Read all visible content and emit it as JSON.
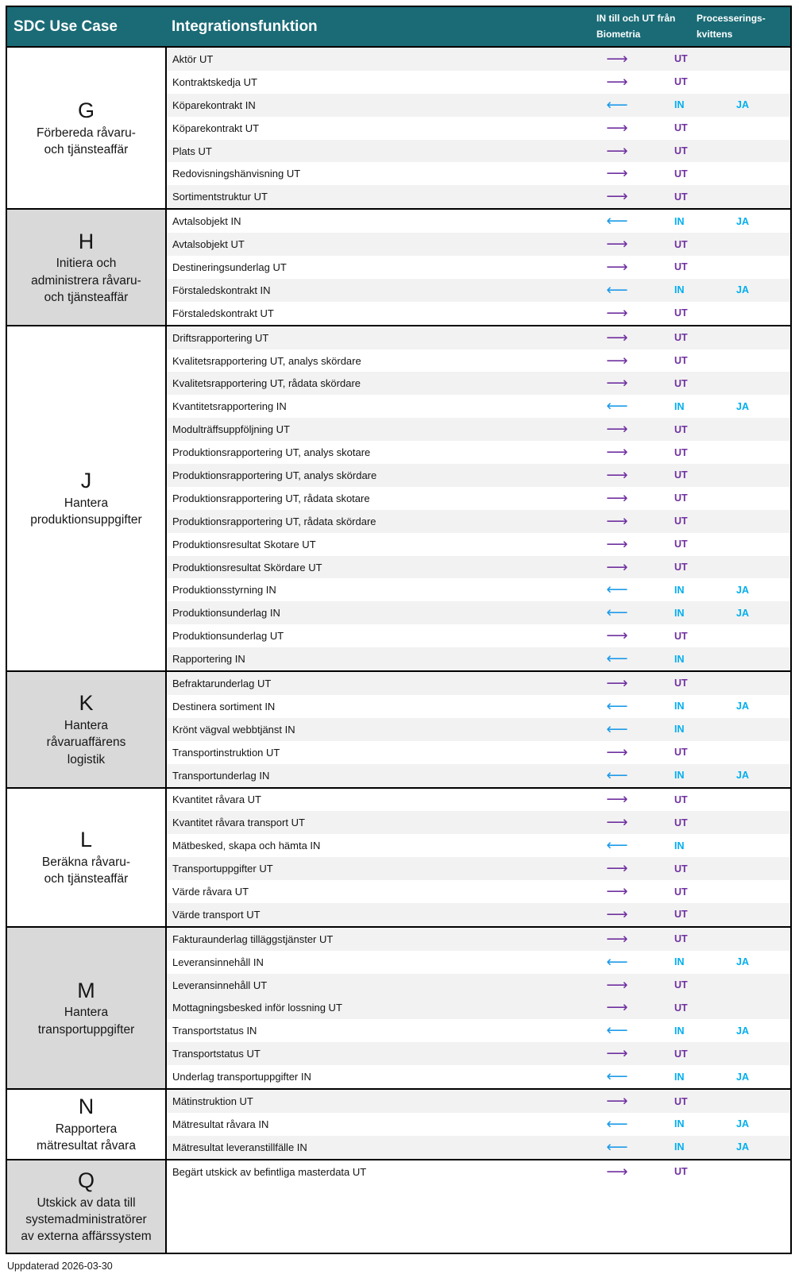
{
  "header": {
    "usecase": "SDC Use Case",
    "function": "Integrationsfunktion",
    "direction_line1": "IN till och UT från",
    "direction_line2": "Biometria",
    "receipt_line1": "Processerings-",
    "receipt_line2": "kvittens"
  },
  "colors": {
    "teal": "#1a6b76",
    "purple": "#7030a0",
    "blue_text": "#00aeef",
    "blue_arrow": "#1e9be9",
    "stripe": "#f2f2f2",
    "group_gray": "#d9d9d9"
  },
  "icons": {
    "out_arrow": "right-arrow-icon",
    "in_arrow": "left-arrow-icon"
  },
  "groups": [
    {
      "letter": "G",
      "title_lines": [
        "Förbereda råvaru-",
        "och tjänsteaffär"
      ],
      "shaded": false,
      "rows": [
        {
          "name": "Aktör UT",
          "dir": "UT",
          "receipt": "",
          "alt": true
        },
        {
          "name": "Kontraktskedja UT",
          "dir": "UT",
          "receipt": "",
          "alt": false
        },
        {
          "name": "Köparekontrakt IN",
          "dir": "IN",
          "receipt": "JA",
          "alt": true
        },
        {
          "name": "Köparekontrakt UT",
          "dir": "UT",
          "receipt": "",
          "alt": false
        },
        {
          "name": "Plats UT",
          "dir": "UT",
          "receipt": "",
          "alt": true
        },
        {
          "name": "Redovisningshänvisning UT",
          "dir": "UT",
          "receipt": "",
          "alt": false
        },
        {
          "name": "Sortimentstruktur UT",
          "dir": "UT",
          "receipt": "",
          "alt": true
        }
      ]
    },
    {
      "letter": "H",
      "title_lines": [
        "Initiera och",
        "administrera råvaru-",
        "och tjänsteaffär"
      ],
      "shaded": true,
      "rows": [
        {
          "name": "Avtalsobjekt IN",
          "dir": "IN",
          "receipt": "JA",
          "alt": false
        },
        {
          "name": "Avtalsobjekt UT",
          "dir": "UT",
          "receipt": "",
          "alt": true
        },
        {
          "name": "Destineringsunderlag UT",
          "dir": "UT",
          "receipt": "",
          "alt": false
        },
        {
          "name": "Förstaledskontrakt IN",
          "dir": "IN",
          "receipt": "JA",
          "alt": true
        },
        {
          "name": "Förstaledskontrakt UT",
          "dir": "UT",
          "receipt": "",
          "alt": false
        }
      ]
    },
    {
      "letter": "J",
      "title_lines": [
        "Hantera",
        "produktionsuppgifter"
      ],
      "shaded": false,
      "rows": [
        {
          "name": "Driftsrapportering UT",
          "dir": "UT",
          "receipt": "",
          "alt": true
        },
        {
          "name": "Kvalitetsrapportering UT, analys skördare",
          "dir": "UT",
          "receipt": "",
          "alt": false
        },
        {
          "name": "Kvalitetsrapportering UT, rådata skördare",
          "dir": "UT",
          "receipt": "",
          "alt": true
        },
        {
          "name": "Kvantitetsrapportering IN",
          "dir": "IN",
          "receipt": "JA",
          "alt": false
        },
        {
          "name": "Modulträffsuppföljning UT",
          "dir": "UT",
          "receipt": "",
          "alt": true
        },
        {
          "name": "Produktionsrapportering UT, analys skotare",
          "dir": "UT",
          "receipt": "",
          "alt": false
        },
        {
          "name": "Produktionsrapportering UT, analys skördare",
          "dir": "UT",
          "receipt": "",
          "alt": true
        },
        {
          "name": "Produktionsrapportering UT, rådata skotare",
          "dir": "UT",
          "receipt": "",
          "alt": false
        },
        {
          "name": "Produktionsrapportering UT, rådata skördare",
          "dir": "UT",
          "receipt": "",
          "alt": true
        },
        {
          "name": "Produktionsresultat Skotare UT",
          "dir": "UT",
          "receipt": "",
          "alt": false
        },
        {
          "name": "Produktionsresultat Skördare UT",
          "dir": "UT",
          "receipt": "",
          "alt": true
        },
        {
          "name": "Produktionsstyrning IN",
          "dir": "IN",
          "receipt": "JA",
          "alt": false
        },
        {
          "name": "Produktionsunderlag IN",
          "dir": "IN",
          "receipt": "JA",
          "alt": true
        },
        {
          "name": "Produktionsunderlag UT",
          "dir": "UT",
          "receipt": "",
          "alt": false
        },
        {
          "name": "Rapportering IN",
          "dir": "IN",
          "receipt": "",
          "alt": true
        }
      ]
    },
    {
      "letter": "K",
      "title_lines": [
        "Hantera",
        "råvaruaffärens",
        "logistik"
      ],
      "shaded": true,
      "rows": [
        {
          "name": "Befraktarunderlag UT",
          "dir": "UT",
          "receipt": "",
          "alt": true
        },
        {
          "name": "Destinera sortiment IN",
          "dir": "IN",
          "receipt": "JA",
          "alt": false
        },
        {
          "name": "Krönt vägval webbtjänst IN",
          "dir": "IN",
          "receipt": "",
          "alt": true
        },
        {
          "name": "Transportinstruktion UT",
          "dir": "UT",
          "receipt": "",
          "alt": false
        },
        {
          "name": "Transportunderlag IN",
          "dir": "IN",
          "receipt": "JA",
          "alt": true
        }
      ]
    },
    {
      "letter": "L",
      "title_lines": [
        "Beräkna råvaru-",
        "och tjänsteaffär"
      ],
      "shaded": false,
      "rows": [
        {
          "name": "Kvantitet råvara UT",
          "dir": "UT",
          "receipt": "",
          "alt": false
        },
        {
          "name": "Kvantitet råvara transport UT",
          "dir": "UT",
          "receipt": "",
          "alt": true
        },
        {
          "name": "Mätbesked, skapa och hämta IN",
          "dir": "IN",
          "receipt": "",
          "alt": false
        },
        {
          "name": "Transportuppgifter UT",
          "dir": "UT",
          "receipt": "",
          "alt": true
        },
        {
          "name": "Värde råvara UT",
          "dir": "UT",
          "receipt": "",
          "alt": false
        },
        {
          "name": "Värde transport UT",
          "dir": "UT",
          "receipt": "",
          "alt": true
        }
      ]
    },
    {
      "letter": "M",
      "title_lines": [
        "Hantera",
        "transportuppgifter"
      ],
      "shaded": true,
      "rows": [
        {
          "name": "Fakturaunderlag tilläggstjänster UT",
          "dir": "UT",
          "receipt": "",
          "alt": true
        },
        {
          "name": "Leveransinnehåll IN",
          "dir": "IN",
          "receipt": "JA",
          "alt": false
        },
        {
          "name": "Leveransinnehåll UT",
          "dir": "UT",
          "receipt": "",
          "alt": true
        },
        {
          "name": "Mottagningsbesked inför lossning UT",
          "dir": "UT",
          "receipt": "",
          "alt": true
        },
        {
          "name": "Transportstatus IN",
          "dir": "IN",
          "receipt": "JA",
          "alt": false
        },
        {
          "name": "Transportstatus UT",
          "dir": "UT",
          "receipt": "",
          "alt": true
        },
        {
          "name": "Underlag transportuppgifter IN",
          "dir": "IN",
          "receipt": "JA",
          "alt": false
        }
      ]
    },
    {
      "letter": "N",
      "title_lines": [
        "Rapportera",
        "mätresultat råvara"
      ],
      "shaded": false,
      "rows": [
        {
          "name": "Mätinstruktion UT",
          "dir": "UT",
          "receipt": "",
          "alt": true
        },
        {
          "name": "Mätresultat råvara IN",
          "dir": "IN",
          "receipt": "JA",
          "alt": false
        },
        {
          "name": "Mätresultat leveranstillfälle IN",
          "dir": "IN",
          "receipt": "JA",
          "alt": true
        }
      ]
    },
    {
      "letter": "Q",
      "title_lines": [
        "Utskick av data till",
        "systemadministratörer",
        "av externa affärssystem"
      ],
      "shaded": true,
      "rows": [
        {
          "name": "Begärt utskick av befintliga masterdata UT",
          "dir": "UT",
          "receipt": "",
          "alt": false
        }
      ]
    }
  ],
  "footer": {
    "updated": "Uppdaterad 2026-03-30"
  }
}
